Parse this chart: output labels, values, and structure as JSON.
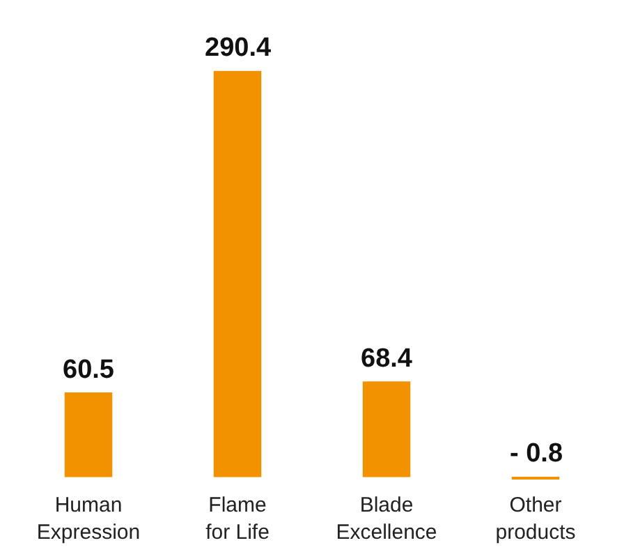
{
  "chart_data": {
    "type": "bar",
    "categories": [
      "Human\nExpression",
      "Flame\nfor Life",
      "Blade\nExcellence",
      "Other\nproducts"
    ],
    "values": [
      60.5,
      290.4,
      68.4,
      -0.8
    ],
    "value_labels": [
      "60.5",
      "290.4",
      "68.4",
      "- 0.8"
    ],
    "color": "#f39200"
  }
}
